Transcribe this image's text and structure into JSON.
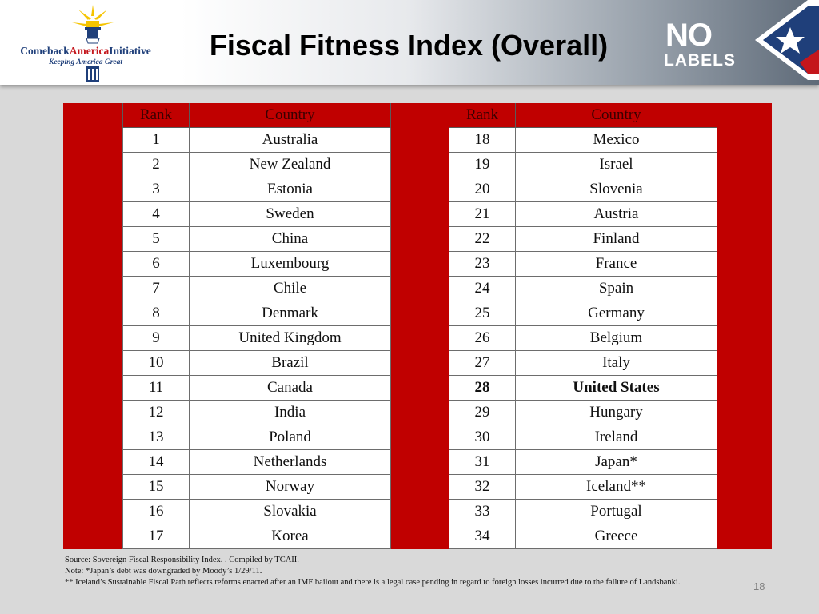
{
  "header": {
    "logo_left": {
      "name_part1": "Comeback",
      "name_part2": "America",
      "name_part3": "Initiative",
      "tagline": "Keeping America Great",
      "colors": {
        "blue": "#1f3f7a",
        "red": "#c4161c",
        "sun": "#f5c400"
      },
      "icon": "lighthouse-icon"
    },
    "title": "Fiscal Fitness Index (Overall)",
    "logo_right": {
      "line1": "NO",
      "line2": "LABELS",
      "icon": "star-flag-icon",
      "colors": {
        "red": "#c4161c",
        "blue": "#1f3f7a",
        "white": "#ffffff"
      }
    }
  },
  "table": {
    "header_color": "#c00000",
    "headers": {
      "rank": "Rank",
      "country": "Country"
    },
    "left": [
      {
        "rank": "1",
        "country": "Australia"
      },
      {
        "rank": "2",
        "country": "New Zealand"
      },
      {
        "rank": "3",
        "country": "Estonia"
      },
      {
        "rank": "4",
        "country": "Sweden"
      },
      {
        "rank": "5",
        "country": "China"
      },
      {
        "rank": "6",
        "country": "Luxembourg"
      },
      {
        "rank": "7",
        "country": "Chile"
      },
      {
        "rank": "8",
        "country": "Denmark"
      },
      {
        "rank": "9",
        "country": "United Kingdom"
      },
      {
        "rank": "10",
        "country": "Brazil"
      },
      {
        "rank": "11",
        "country": "Canada"
      },
      {
        "rank": "12",
        "country": "India"
      },
      {
        "rank": "13",
        "country": "Poland"
      },
      {
        "rank": "14",
        "country": "Netherlands"
      },
      {
        "rank": "15",
        "country": "Norway"
      },
      {
        "rank": "16",
        "country": "Slovakia"
      },
      {
        "rank": "17",
        "country": "Korea"
      }
    ],
    "right": [
      {
        "rank": "18",
        "country": "Mexico"
      },
      {
        "rank": "19",
        "country": "Israel"
      },
      {
        "rank": "20",
        "country": "Slovenia"
      },
      {
        "rank": "21",
        "country": "Austria"
      },
      {
        "rank": "22",
        "country": "Finland"
      },
      {
        "rank": "23",
        "country": "France"
      },
      {
        "rank": "24",
        "country": "Spain"
      },
      {
        "rank": "25",
        "country": "Germany"
      },
      {
        "rank": "26",
        "country": "Belgium"
      },
      {
        "rank": "27",
        "country": "Italy"
      },
      {
        "rank": "28",
        "country": "United States",
        "bold": true
      },
      {
        "rank": "29",
        "country": "Hungary"
      },
      {
        "rank": "30",
        "country": "Ireland"
      },
      {
        "rank": "31",
        "country": "Japan*"
      },
      {
        "rank": "32",
        "country": "Iceland**"
      },
      {
        "rank": "33",
        "country": "Portugal"
      },
      {
        "rank": "34",
        "country": "Greece"
      }
    ]
  },
  "notes": {
    "source": "Source: Sovereign Fiscal Responsibility Index. . Compiled by TCAII.",
    "note": "Note: *Japan’s debt was downgraded by Moody’s 1/29/11.",
    "footnote": "** Iceland’s Sustainable Fiscal Path reflects reforms enacted after an IMF bailout and there is a legal case pending in regard to foreign losses incurred due to the failure of Landsbanki."
  },
  "page_number": "18"
}
